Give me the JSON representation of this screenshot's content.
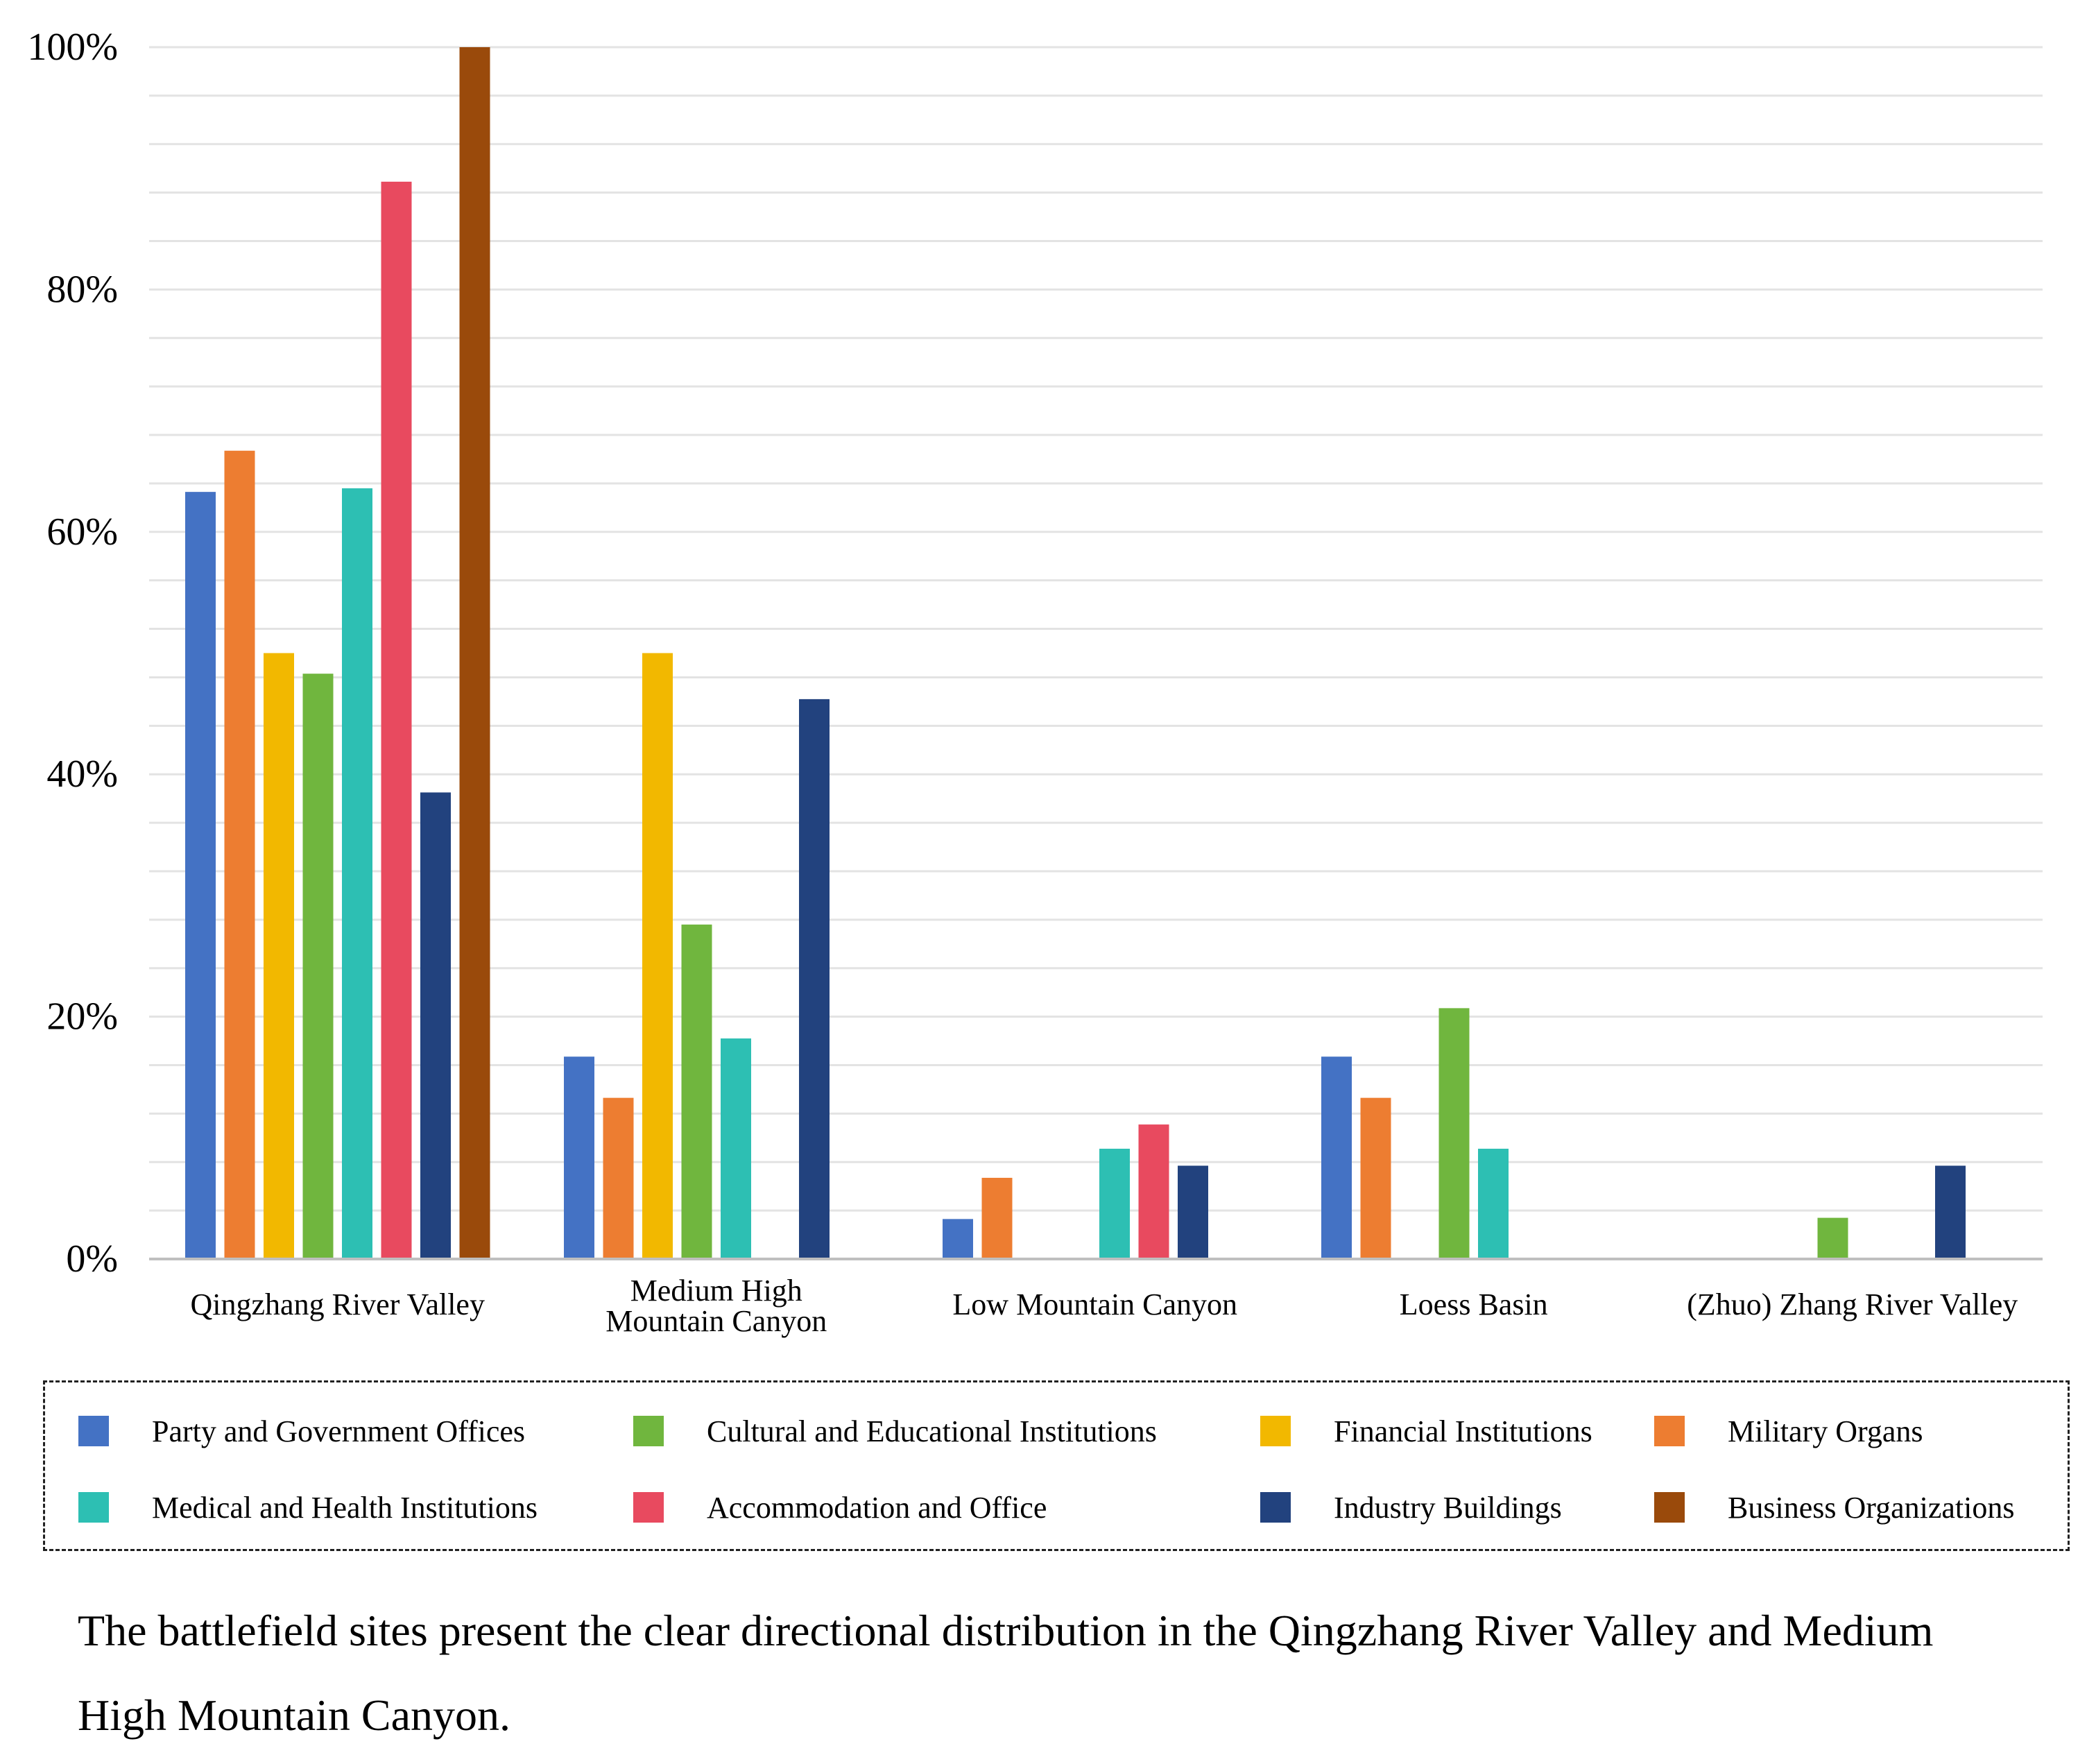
{
  "chart_data": {
    "type": "bar",
    "title": "",
    "xlabel": "",
    "ylabel": "",
    "ylim": [
      0,
      100
    ],
    "y_ticks": [
      "0%",
      "20%",
      "40%",
      "60%",
      "80%",
      "100%"
    ],
    "y_tick_values": [
      0,
      20,
      40,
      60,
      80,
      100
    ],
    "grid": true,
    "legend_position": "bottom",
    "categories": [
      "Qingzhang River Valley",
      "Medium High Mountain Canyon",
      "Low Mountain Canyon",
      "Loess Basin",
      "(Zhuo) Zhang River Valley"
    ],
    "category_lines": [
      [
        "Qingzhang River Valley"
      ],
      [
        "Medium High",
        "Mountain Canyon"
      ],
      [
        "Low Mountain Canyon"
      ],
      [
        "Loess Basin"
      ],
      [
        "(Zhuo) Zhang River Valley"
      ]
    ],
    "series": [
      {
        "name": "Party and Government Offices",
        "color": "#4472c4",
        "values": [
          63.3,
          16.7,
          3.3,
          16.7,
          0
        ]
      },
      {
        "name": "Military Organs",
        "color": "#ed7d31",
        "values": [
          66.7,
          13.3,
          6.7,
          13.3,
          0
        ]
      },
      {
        "name": "Financial Institutions",
        "color": "#f2b800",
        "values": [
          50,
          50,
          0,
          0,
          0
        ]
      },
      {
        "name": "Cultural and Educational Institutions",
        "color": "#70b63e",
        "values": [
          48.3,
          27.6,
          0,
          20.7,
          3.4
        ]
      },
      {
        "name": "Medical and Health Institutions",
        "color": "#2dbfb3",
        "values": [
          63.6,
          18.2,
          9.1,
          9.1,
          0
        ]
      },
      {
        "name": "Accommodation and Office",
        "color": "#e84a5f",
        "values": [
          88.9,
          0,
          11.1,
          0,
          0
        ]
      },
      {
        "name": "Industry Buildings",
        "color": "#22427e",
        "values": [
          38.5,
          46.2,
          7.7,
          0,
          7.7
        ]
      },
      {
        "name": "Business Organizations",
        "color": "#9a4a0b",
        "values": [
          100,
          0,
          0,
          0,
          0
        ]
      }
    ],
    "legend_order": [
      [
        "Party and Government Offices",
        "Cultural and Educational Institutions",
        "Financial Institutions",
        "Military Organs"
      ],
      [
        "Medical and Health Institutions",
        "Accommodation and Office",
        "Industry Buildings",
        "Business Organizations"
      ]
    ]
  },
  "caption": "The battlefield sites present the clear directional distribution in the Qingzhang River Valley and Medium High Mountain Canyon."
}
